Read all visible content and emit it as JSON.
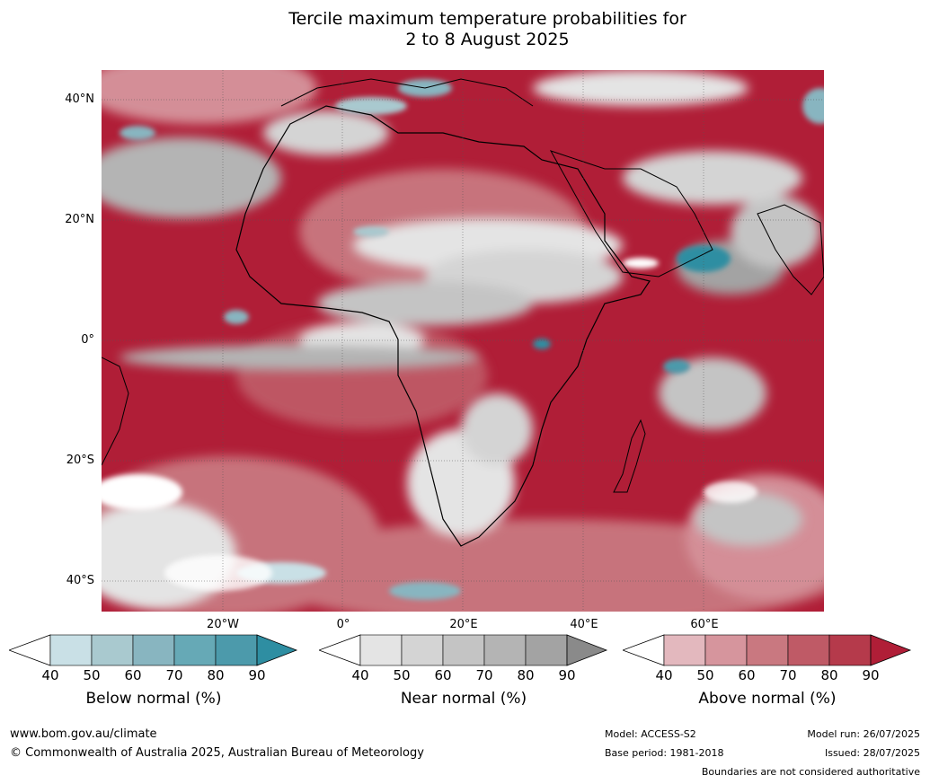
{
  "title_line1": "Tercile maximum temperature probabilities for",
  "title_line2": "2 to 8 August 2025",
  "lat_labels": [
    "40°N",
    "20°N",
    "0°",
    "20°S",
    "40°S"
  ],
  "lon_labels": [
    "20°W",
    "0°",
    "20°E",
    "40°E",
    "60°E"
  ],
  "colorbars": {
    "below": {
      "label": "Below normal (%)",
      "ticks": [
        "40",
        "50",
        "60",
        "70",
        "80",
        "90"
      ],
      "colors": [
        "#c9e0e6",
        "#a9c9cf",
        "#88b5c0",
        "#66a9b6",
        "#4c9aab",
        "#2e8ea2"
      ]
    },
    "near": {
      "label": "Near normal (%)",
      "ticks": [
        "40",
        "50",
        "60",
        "70",
        "80",
        "90"
      ],
      "colors": [
        "#e4e4e4",
        "#d4d4d4",
        "#c4c4c4",
        "#b4b4b4",
        "#a3a3a3",
        "#8a8a8a"
      ]
    },
    "above": {
      "label": "Above normal (%)",
      "ticks": [
        "40",
        "50",
        "60",
        "70",
        "80",
        "90"
      ],
      "colors": [
        "#e3b8be",
        "#d6959d",
        "#c97880",
        "#bf5a66",
        "#b53a4b",
        "#b01e37"
      ]
    }
  },
  "footer": {
    "url": "www.bom.gov.au/climate",
    "copyright": "© Commonwealth of Australia 2025, Australian Bureau of Meteorology",
    "model": "Model: ACCESS-S2",
    "base_period": "Base period: 1981-2018",
    "model_run": "Model run: 26/07/2025",
    "issued": "Issued: 28/07/2025",
    "disclaimer": "Boundaries are not considered authoritative"
  },
  "map_colors": {
    "ocean_dominant": "#b01e37",
    "coast": "#000000",
    "borders": "#808080"
  }
}
